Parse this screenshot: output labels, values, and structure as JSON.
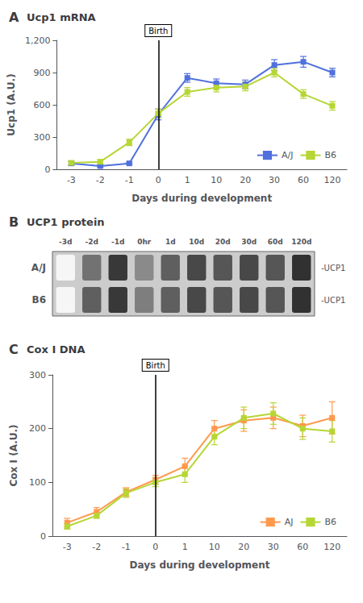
{
  "chart_data": [
    {
      "type": "line",
      "title": "Ucp1 mRNA",
      "ylabel": "Ucp1 (A.U.)",
      "xlabel": "Days during development",
      "categories": [
        "-3",
        "-2",
        "-1",
        "0",
        "1",
        "10",
        "20",
        "30",
        "60",
        "120"
      ],
      "series": [
        {
          "name": "A/J",
          "values": [
            55,
            30,
            55,
            510,
            850,
            800,
            790,
            970,
            1000,
            900
          ],
          "errors": [
            20,
            10,
            10,
            50,
            40,
            40,
            40,
            50,
            50,
            40
          ]
        },
        {
          "name": "B6",
          "values": [
            60,
            70,
            250,
            520,
            720,
            760,
            770,
            900,
            700,
            590
          ],
          "errors": [
            15,
            20,
            30,
            40,
            40,
            40,
            40,
            40,
            40,
            40
          ]
        }
      ],
      "ylim": [
        0,
        1200
      ],
      "yticks": [
        0,
        300,
        600,
        900,
        1200
      ],
      "grid": false,
      "legend": "lower right",
      "marker": "square",
      "annotations": [
        "A",
        {
          "text": "Birth",
          "x": "0"
        }
      ]
    },
    {
      "type": "heatmap",
      "title": "UCP1 protein",
      "categories": [
        "-3d",
        "-2d",
        "-1d",
        "0hr",
        "1d",
        "10d",
        "20d",
        "30d",
        "60d",
        "120d"
      ],
      "series": [
        {
          "name": "A/J",
          "values": [
            0.04,
            0.6,
            0.85,
            0.5,
            0.68,
            0.78,
            0.72,
            0.78,
            0.72,
            0.88
          ]
        },
        {
          "name": "B6",
          "values": [
            0.04,
            0.68,
            0.85,
            0.55,
            0.68,
            0.78,
            0.72,
            0.78,
            0.72,
            0.88
          ]
        }
      ],
      "annotations": [
        "B",
        {
          "text": "-UCP1",
          "row": "A/J"
        },
        {
          "text": "-UCP1",
          "row": "B6"
        }
      ]
    },
    {
      "type": "line",
      "title": "Cox I DNA",
      "ylabel": "Cox I (A.U.)",
      "xlabel": "Days during development",
      "categories": [
        "-3",
        "-2",
        "-1",
        "0",
        "1",
        "10",
        "20",
        "30",
        "60",
        "120"
      ],
      "series": [
        {
          "name": "AJ",
          "values": [
            25,
            45,
            82,
            105,
            130,
            200,
            215,
            220,
            205,
            220
          ],
          "errors": [
            8,
            8,
            8,
            8,
            15,
            15,
            20,
            20,
            20,
            30
          ]
        },
        {
          "name": "B6",
          "values": [
            18,
            38,
            80,
            100,
            115,
            185,
            220,
            228,
            200,
            195
          ],
          "errors": [
            5,
            5,
            8,
            8,
            15,
            15,
            20,
            20,
            20,
            20
          ]
        }
      ],
      "ylim": [
        0,
        300
      ],
      "yticks": [
        0,
        100,
        200,
        300
      ],
      "grid": false,
      "legend": "lower right",
      "marker": "square",
      "annotations": [
        "C",
        {
          "text": "Birth",
          "x": "0"
        }
      ]
    }
  ]
}
